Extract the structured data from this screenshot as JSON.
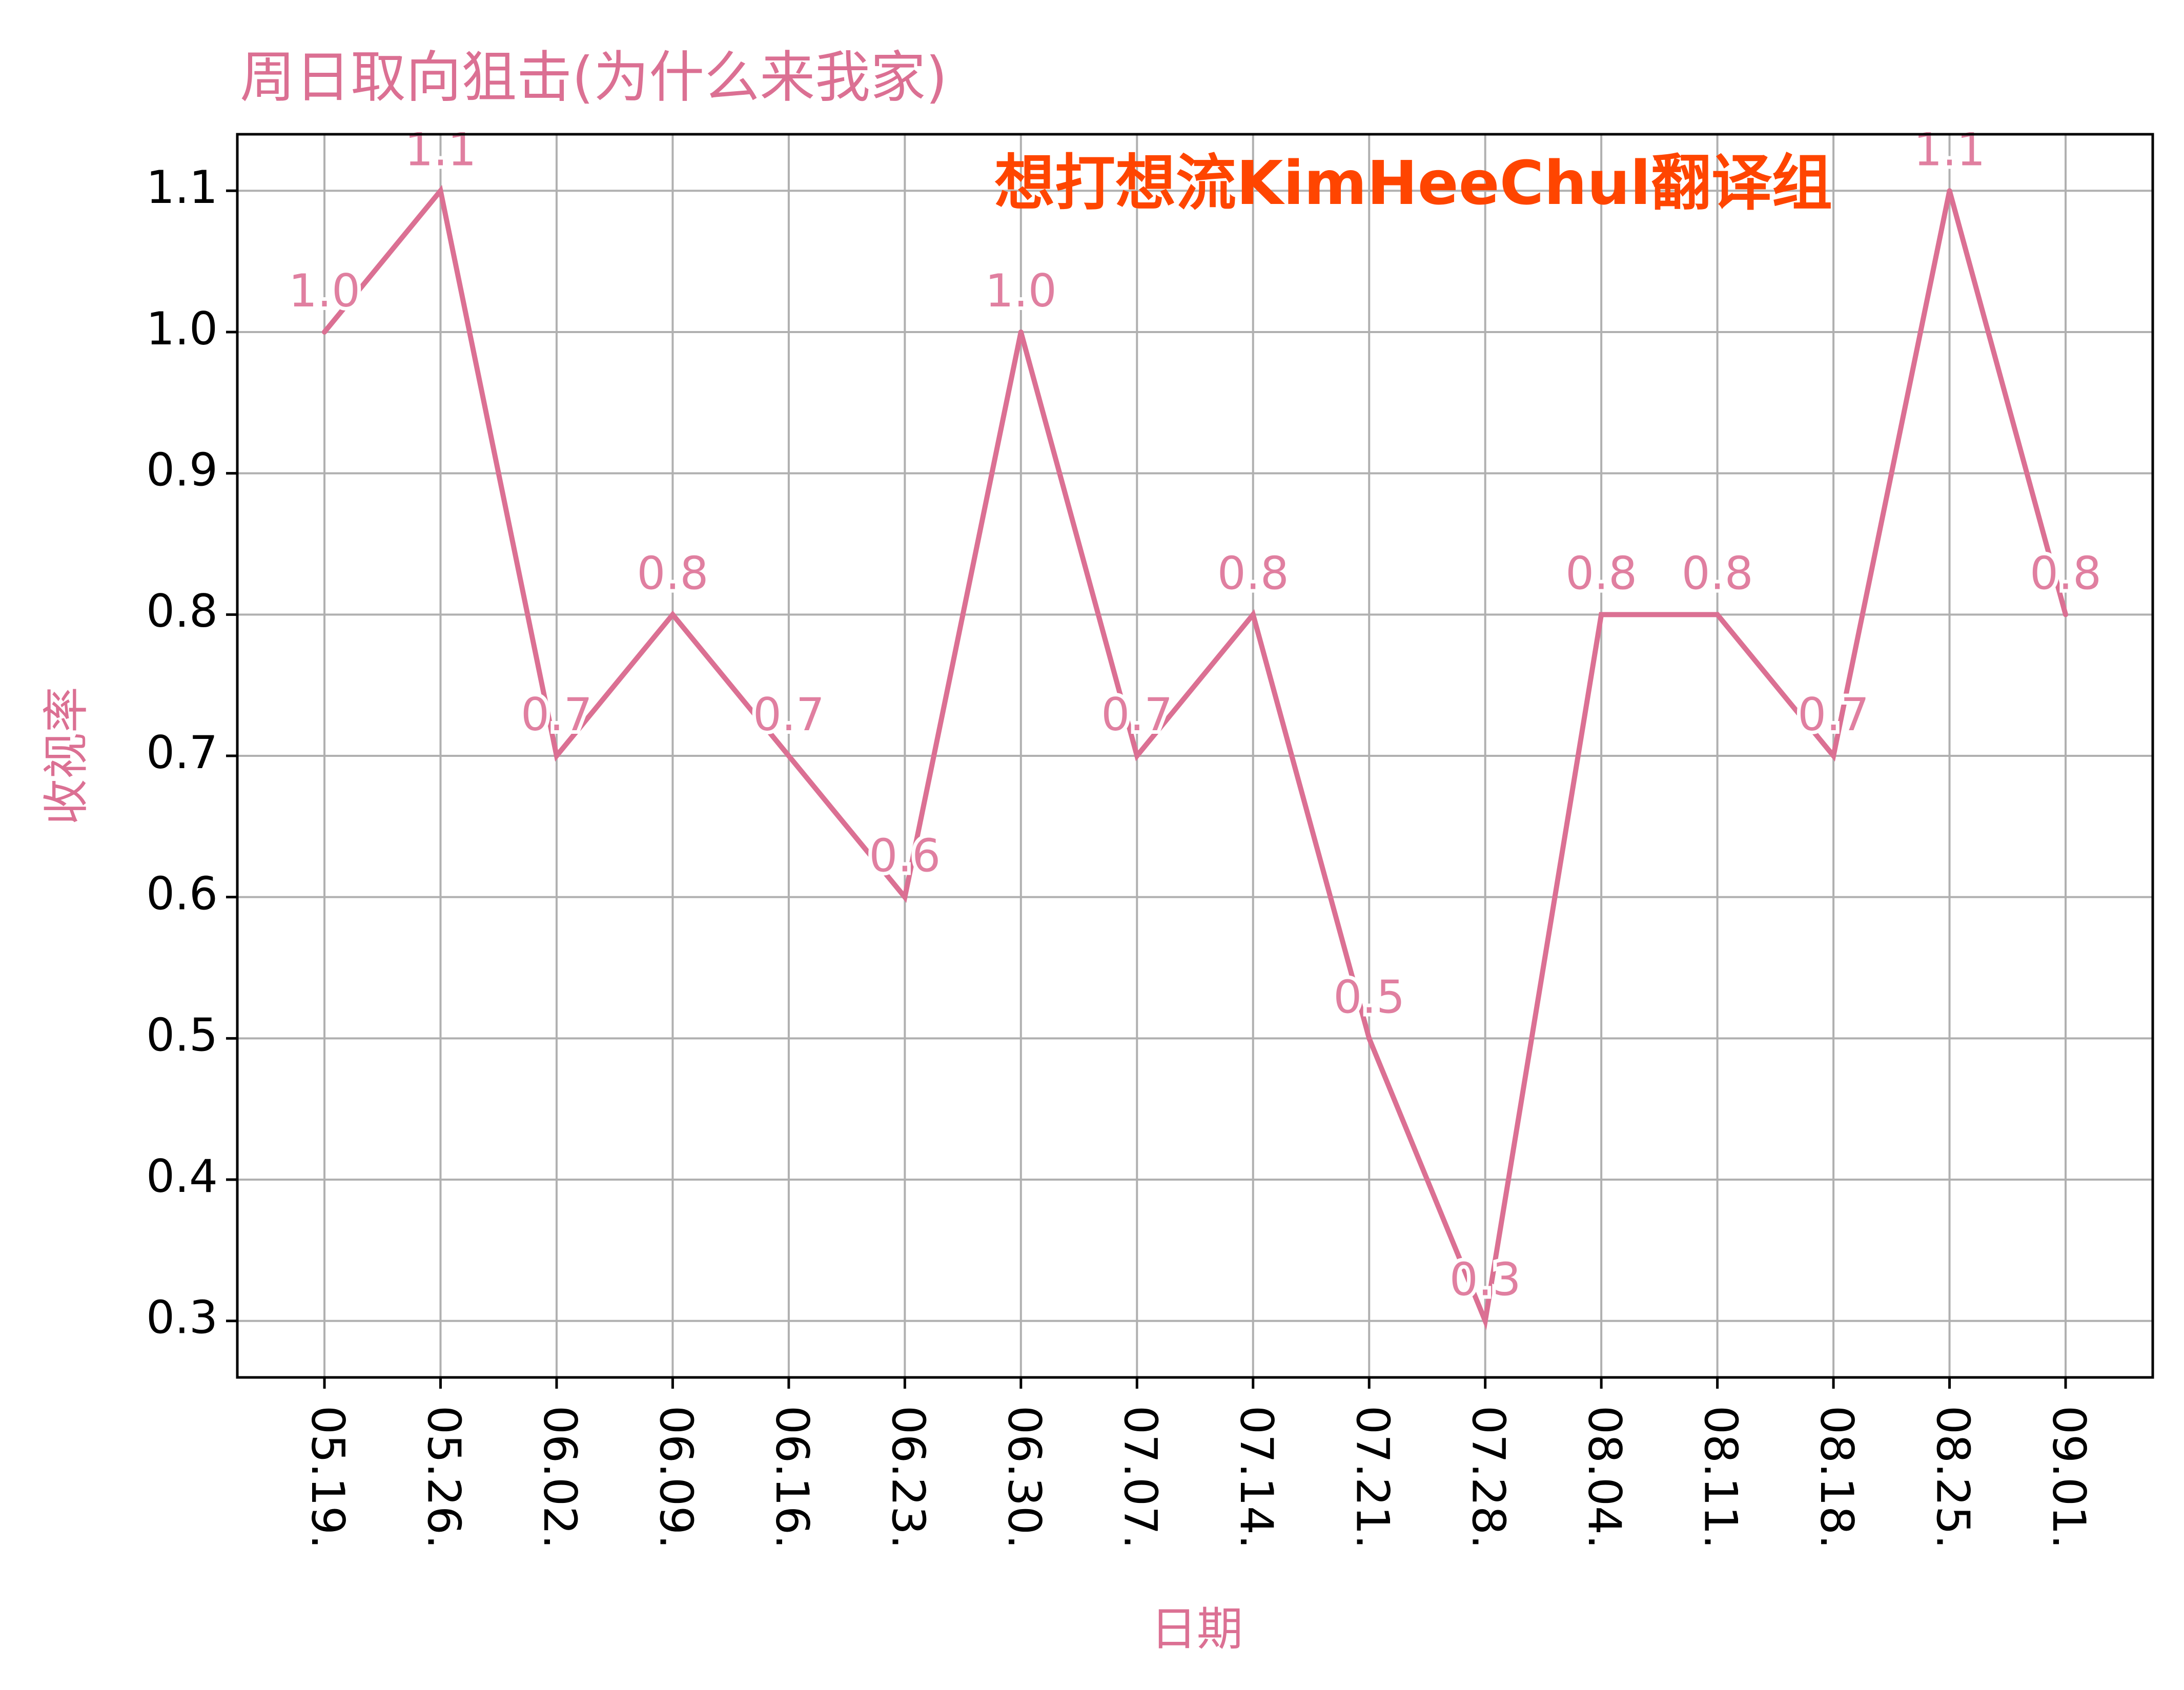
{
  "chart_data": {
    "type": "line",
    "title": "周日取向狙击(为什么来我家)",
    "watermark": "想打想流KimHeeChul翻译组",
    "xlabel": "日期",
    "ylabel": "收视率",
    "categories": [
      "05.19.",
      "05.26.",
      "06.02.",
      "06.09.",
      "06.16.",
      "06.23.",
      "06.30.",
      "07.07.",
      "07.14.",
      "07.21.",
      "07.28.",
      "08.04.",
      "08.11.",
      "08.18.",
      "08.25.",
      "09.01."
    ],
    "series": [
      {
        "values": [
          1.0,
          1.1,
          0.7,
          0.8,
          0.7,
          0.6,
          1.0,
          0.7,
          0.8,
          0.5,
          0.3,
          0.8,
          0.8,
          0.7,
          1.1,
          0.8
        ],
        "data_labels": [
          "1.0",
          "1.1",
          "0.7",
          "0.8",
          "0.7",
          "0.6",
          "1.0",
          "0.7",
          "0.8",
          "0.5",
          "0.3",
          "0.8",
          "0.8",
          "0.7",
          "1.1",
          "0.8"
        ]
      }
    ],
    "yticks": [
      "0.3",
      "0.4",
      "0.5",
      "0.6",
      "0.7",
      "0.8",
      "0.9",
      "1.0",
      "1.1"
    ],
    "ylim": [
      0.26,
      1.14
    ],
    "grid": true,
    "colors": {
      "line": "#DB7093",
      "label": "#E07FA0",
      "title": "#DB7093",
      "watermark": "#FF4500",
      "grid": "#B0B0B0",
      "axis": "#000000"
    }
  }
}
